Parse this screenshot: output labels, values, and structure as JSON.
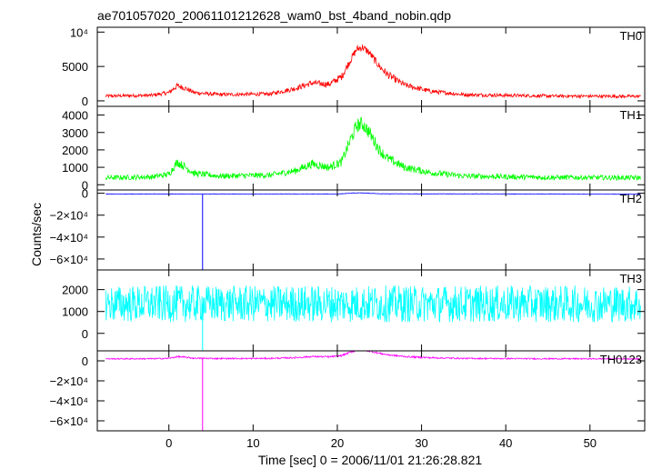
{
  "chart_data": {
    "type": "line",
    "title": "ae701057020_20061101212628_wam0_bst_4band_nobin.qdp",
    "xlabel": "Time [sec] 0 = 2006/11/01 21:26:28.821",
    "ylabel": "Counts/sec",
    "xlim": [
      -8.5,
      56.5
    ],
    "x_ticks": [
      0,
      10,
      20,
      30,
      40,
      50
    ],
    "x_tick_labels": [
      "0",
      "10",
      "20",
      "30",
      "40",
      "50"
    ],
    "grid": false,
    "panels": [
      {
        "name": "TH0",
        "color": "#ff0000",
        "ylim": [
          -800,
          10700
        ],
        "y_ticks": [
          0,
          5000,
          10000
        ],
        "y_tick_labels": [
          "0",
          "5000",
          "10⁴"
        ],
        "profile_x": [
          -7.5,
          -2,
          0,
          1,
          2,
          3,
          6,
          12,
          15,
          17,
          19,
          20.5,
          21.5,
          22.3,
          23,
          23.8,
          25,
          26,
          28,
          31,
          35,
          45,
          56
        ],
        "profile_y": [
          700,
          800,
          1200,
          2200,
          1800,
          1200,
          900,
          1000,
          1800,
          2600,
          2400,
          3500,
          5800,
          7500,
          7800,
          7000,
          5000,
          3800,
          2300,
          1400,
          900,
          700,
          650
        ],
        "noise": 250,
        "spike_x": null
      },
      {
        "name": "TH1",
        "color": "#00ff00",
        "ylim": [
          -300,
          4500
        ],
        "y_ticks": [
          0,
          1000,
          2000,
          3000,
          4000
        ],
        "y_tick_labels": [
          "0",
          "1000",
          "2000",
          "3000",
          "4000"
        ],
        "profile_x": [
          -7.5,
          -2,
          0,
          1,
          2,
          3,
          6,
          12,
          15,
          17,
          19,
          20.5,
          21.5,
          22.3,
          23,
          23.8,
          25,
          26,
          28,
          31,
          35,
          45,
          56
        ],
        "profile_y": [
          400,
          450,
          600,
          1300,
          1000,
          650,
          500,
          550,
          800,
          1200,
          1000,
          1300,
          2500,
          3400,
          3500,
          3000,
          2000,
          1500,
          1000,
          700,
          500,
          420,
          400
        ],
        "noise": 200,
        "spike_x": null
      },
      {
        "name": "TH2",
        "color": "#0000ff",
        "ylim": [
          -70000,
          3000
        ],
        "y_ticks": [
          0,
          -20000,
          -40000,
          -60000
        ],
        "y_tick_labels": [
          "0",
          "−2×10⁴",
          "−4×10⁴",
          "−6×10⁴"
        ],
        "profile_x": [
          -7.5,
          20,
          22,
          23,
          25,
          56
        ],
        "profile_y": [
          -700,
          -700,
          200,
          300,
          -500,
          -800
        ],
        "noise": 350,
        "spike_x": 4,
        "spike_y": -70000
      },
      {
        "name": "TH3",
        "color": "#00ffff",
        "ylim": [
          -800,
          2900
        ],
        "y_ticks": [
          0,
          1000,
          2000
        ],
        "y_tick_labels": [
          "0",
          "1000",
          "2000"
        ],
        "profile_x": [
          -7.5,
          56
        ],
        "profile_y": [
          1350,
          1350
        ],
        "noise": 650,
        "spike_x": 4,
        "spike_y": -800
      },
      {
        "name": "TH0123",
        "color": "#ff00ff",
        "ylim": [
          -70000,
          10000
        ],
        "y_ticks": [
          0,
          -20000,
          -40000,
          -60000
        ],
        "y_tick_labels": [
          "0",
          "−2×10⁴",
          "−4×10⁴",
          "−6×10⁴"
        ],
        "profile_x": [
          -7.5,
          -2,
          0,
          1,
          2,
          3,
          6,
          12,
          15,
          17,
          19,
          20.5,
          21.5,
          22.3,
          23,
          23.8,
          25,
          26,
          28,
          31,
          35,
          45,
          56
        ],
        "profile_y": [
          2000,
          2100,
          2500,
          4200,
          3500,
          2600,
          2300,
          2400,
          3200,
          4300,
          4000,
          5200,
          8500,
          10500,
          10800,
          9800,
          7500,
          6000,
          4300,
          3100,
          2400,
          2100,
          2000
        ],
        "noise": 400,
        "spike_x": 4,
        "spike_y": -70000
      }
    ]
  }
}
